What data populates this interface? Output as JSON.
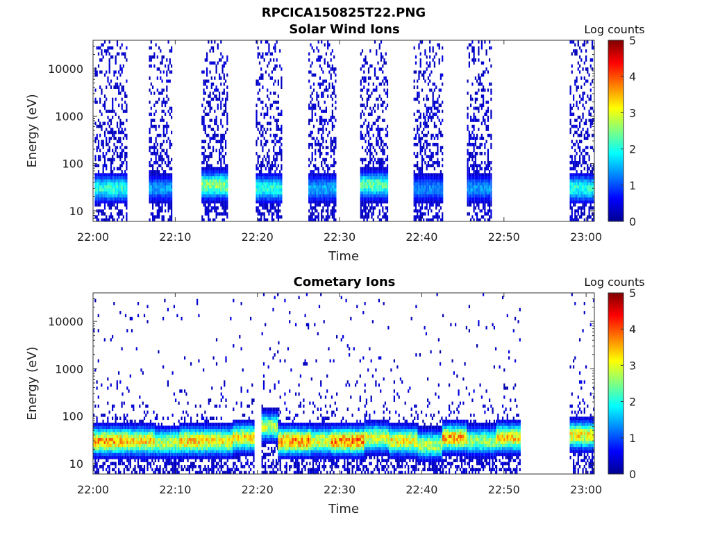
{
  "figure_title": "RPCICA150825T22.PNG",
  "colormap": [
    "#00008f",
    "#0000ff",
    "#0080ff",
    "#00ffff",
    "#80ff80",
    "#ffff00",
    "#ff8000",
    "#ff0000",
    "#800000"
  ],
  "chart_data": [
    {
      "type": "heatmap",
      "title": "Solar Wind Ions",
      "xlabel": "Time",
      "ylabel": "Energy (eV)",
      "x_ticks": [
        "22:00",
        "22:10",
        "22:20",
        "22:30",
        "22:40",
        "22:50",
        "23:00"
      ],
      "x_tick_minutes": [
        0,
        10,
        20,
        30,
        40,
        50,
        60
      ],
      "xlim_minutes": [
        0,
        61
      ],
      "y_scale": "log",
      "ylim": [
        6,
        40000
      ],
      "y_ticks": [
        "10",
        "100",
        "1000",
        "10000"
      ],
      "y_tick_values": [
        10,
        100,
        1000,
        10000
      ],
      "colorbar": {
        "label": "Log counts",
        "range": [
          0,
          5
        ],
        "ticks": [
          "0",
          "1",
          "2",
          "3",
          "4",
          "5"
        ]
      },
      "bursts": [
        {
          "start": 0.2,
          "end": 4.0,
          "peak_energy": 30,
          "peak_log": 2.2
        },
        {
          "start": 6.8,
          "end": 9.5,
          "peak_energy": 30,
          "peak_log": 1.5
        },
        {
          "start": 13.2,
          "end": 16.3,
          "peak_energy": 35,
          "peak_log": 2.8
        },
        {
          "start": 19.8,
          "end": 23.0,
          "peak_energy": 30,
          "peak_log": 2.2
        },
        {
          "start": 26.2,
          "end": 29.5,
          "peak_energy": 30,
          "peak_log": 1.6
        },
        {
          "start": 32.5,
          "end": 35.8,
          "peak_energy": 35,
          "peak_log": 2.5
        },
        {
          "start": 39.0,
          "end": 42.5,
          "peak_energy": 30,
          "peak_log": 1.4
        },
        {
          "start": 45.5,
          "end": 48.5,
          "peak_energy": 30,
          "peak_log": 1.5
        },
        {
          "start": 58.0,
          "end": 61.0,
          "peak_energy": 30,
          "peak_log": 2.2
        }
      ]
    },
    {
      "type": "heatmap",
      "title": "Cometary Ions",
      "xlabel": "Time",
      "ylabel": "Energy (eV)",
      "x_ticks": [
        "22:00",
        "22:10",
        "22:20",
        "22:30",
        "22:40",
        "22:50",
        "23:00"
      ],
      "x_tick_minutes": [
        0,
        10,
        20,
        30,
        40,
        50,
        60
      ],
      "xlim_minutes": [
        0,
        61
      ],
      "y_scale": "log",
      "ylim": [
        6,
        40000
      ],
      "y_ticks": [
        "10",
        "100",
        "1000",
        "10000"
      ],
      "y_tick_values": [
        10,
        100,
        1000,
        10000
      ],
      "colorbar": {
        "label": "Log counts",
        "range": [
          0,
          5
        ],
        "ticks": [
          "0",
          "1",
          "2",
          "3",
          "4",
          "5"
        ]
      },
      "bursts": [
        {
          "start": 0.0,
          "end": 3.5,
          "peak_energy": 30,
          "peak_log": 3.8
        },
        {
          "start": 3.5,
          "end": 7.5,
          "peak_energy": 30,
          "peak_log": 3.6
        },
        {
          "start": 7.5,
          "end": 10.5,
          "peak_energy": 28,
          "peak_log": 3.0
        },
        {
          "start": 10.5,
          "end": 14.0,
          "peak_energy": 30,
          "peak_log": 3.6
        },
        {
          "start": 14.0,
          "end": 17.0,
          "peak_energy": 30,
          "peak_log": 3.4
        },
        {
          "start": 17.0,
          "end": 19.5,
          "peak_energy": 35,
          "peak_log": 3.4
        },
        {
          "start": 20.5,
          "end": 22.5,
          "peak_energy": 60,
          "peak_log": 3.0
        },
        {
          "start": 22.5,
          "end": 26.5,
          "peak_energy": 30,
          "peak_log": 4.0
        },
        {
          "start": 26.5,
          "end": 29.0,
          "peak_energy": 30,
          "peak_log": 3.2
        },
        {
          "start": 29.0,
          "end": 33.0,
          "peak_energy": 30,
          "peak_log": 4.0
        },
        {
          "start": 33.0,
          "end": 36.0,
          "peak_energy": 35,
          "peak_log": 3.2
        },
        {
          "start": 36.0,
          "end": 39.5,
          "peak_energy": 30,
          "peak_log": 3.4
        },
        {
          "start": 39.5,
          "end": 42.5,
          "peak_energy": 25,
          "peak_log": 3.0
        },
        {
          "start": 42.5,
          "end": 45.5,
          "peak_energy": 35,
          "peak_log": 3.8
        },
        {
          "start": 45.5,
          "end": 49.0,
          "peak_energy": 30,
          "peak_log": 2.8
        },
        {
          "start": 49.0,
          "end": 52.0,
          "peak_energy": 35,
          "peak_log": 3.6
        },
        {
          "start": 58.0,
          "end": 61.0,
          "peak_energy": 40,
          "peak_log": 3.4
        }
      ]
    }
  ]
}
